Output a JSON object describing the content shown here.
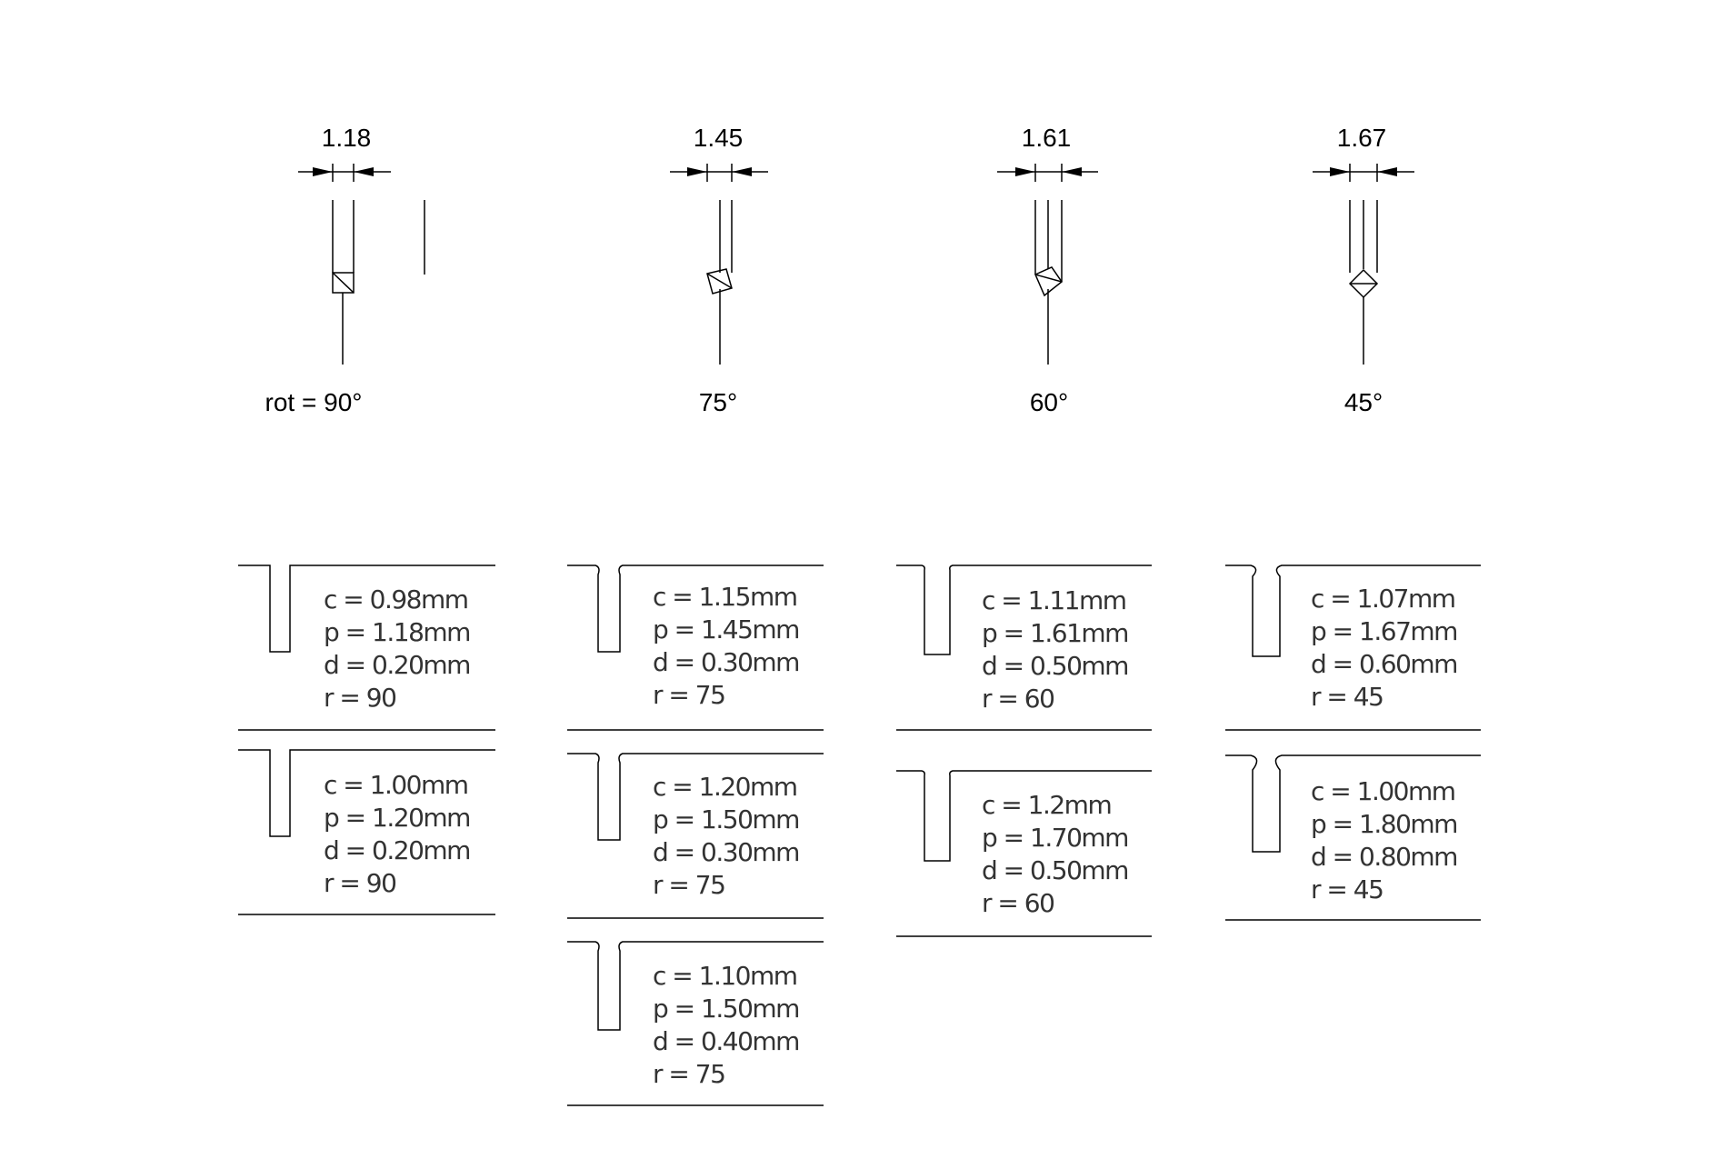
{
  "top_row": [
    {
      "pitch": "1.18",
      "angle": "rot = 90°",
      "rotation": 90
    },
    {
      "pitch": "1.45",
      "angle": "75°",
      "rotation": 75
    },
    {
      "pitch": "1.61",
      "angle": "60°",
      "rotation": 60
    },
    {
      "pitch": "1.67",
      "angle": "45°",
      "rotation": 45
    }
  ],
  "columns": [
    {
      "rotation": 90,
      "groove_style": "straight",
      "specs": [
        {
          "lines": [
            "c = 0.98mm",
            "p = 1.18mm",
            "d = 0.20mm",
            "r = 90"
          ]
        },
        {
          "lines": [
            "c = 1.00mm",
            "p = 1.20mm",
            "d = 0.20mm",
            "r = 90"
          ]
        }
      ]
    },
    {
      "rotation": 75,
      "groove_style": "notched",
      "specs": [
        {
          "lines": [
            "c = 1.15mm",
            "p = 1.45mm",
            "d = 0.30mm",
            "r = 75"
          ]
        },
        {
          "lines": [
            "c = 1.20mm",
            "p = 1.50mm",
            "d = 0.30mm",
            "r = 75"
          ]
        },
        {
          "lines": [
            "c = 1.10mm",
            "p = 1.50mm",
            "d = 0.40mm",
            "r = 75"
          ]
        }
      ]
    },
    {
      "rotation": 60,
      "groove_style": "straight",
      "specs": [
        {
          "lines": [
            "c = 1.11mm",
            "p = 1.61mm",
            "d = 0.50mm",
            "r = 60"
          ]
        },
        {
          "lines": [
            "c = 1.2mm",
            "p = 1.70mm",
            "d = 0.50mm",
            "r = 60"
          ]
        }
      ]
    },
    {
      "rotation": 45,
      "groove_style": "notched",
      "specs": [
        {
          "lines": [
            "c = 1.07mm",
            "p = 1.67mm",
            "d = 0.60mm",
            "r = 45"
          ]
        },
        {
          "lines": [
            "c = 1.00mm",
            "p = 1.80mm",
            "d = 0.80mm",
            "r = 45"
          ]
        }
      ]
    }
  ]
}
